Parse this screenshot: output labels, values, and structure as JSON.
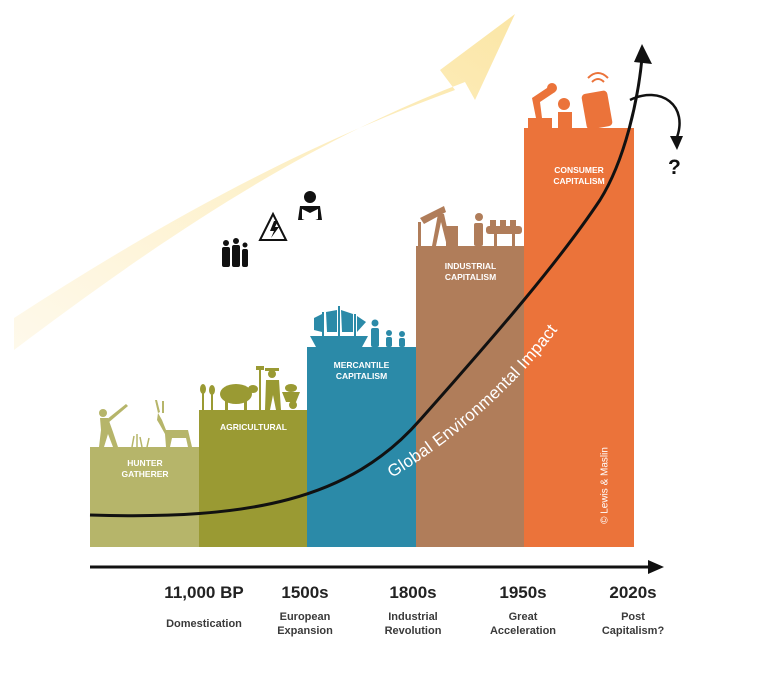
{
  "blocks": [
    {
      "label": "HUNTER\nGATHERER",
      "color": "#b6b56a"
    },
    {
      "label": "AGRICULTURAL",
      "color": "#9a9a33"
    },
    {
      "label": "MERCANTILE\nCAPITALISM",
      "color": "#2b8aa8"
    },
    {
      "label": "INDUSTRIAL\nCAPITALISM",
      "color": "#b07d5a"
    },
    {
      "label": "CONSUMER\nCAPITALISM",
      "color": "#eb733a"
    }
  ],
  "curve_label": "Global Environmental Impact",
  "copyright": "© Lewis & Maslin",
  "question_mark": "?",
  "timeline": [
    {
      "year": "11,000 BP",
      "desc": "Domestication"
    },
    {
      "year": "1500s",
      "desc": "European\nExpansion"
    },
    {
      "year": "1800s",
      "desc": "Industrial\nRevolution"
    },
    {
      "year": "1950s",
      "desc": "Great\nAcceleration"
    },
    {
      "year": "2020s",
      "desc": "Post\nCapitalism?"
    }
  ],
  "icons": {
    "hunter": "hunter-icon",
    "antelope": "antelope-icon",
    "sheep": "sheep-icon",
    "farmer": "farmer-icon",
    "ship": "sailing-ship-icon",
    "people": "people-icon",
    "oil_pump": "oil-pump-icon",
    "factory_worker": "factory-worker-icon",
    "robot": "robot-arm-icon",
    "phone": "smartphone-icon",
    "family": "family-icon",
    "hazard": "electrical-hazard-icon",
    "reader": "person-reading-icon"
  },
  "colors": {
    "arrow_glow": "#fdf0c8",
    "curve": "#111111"
  }
}
